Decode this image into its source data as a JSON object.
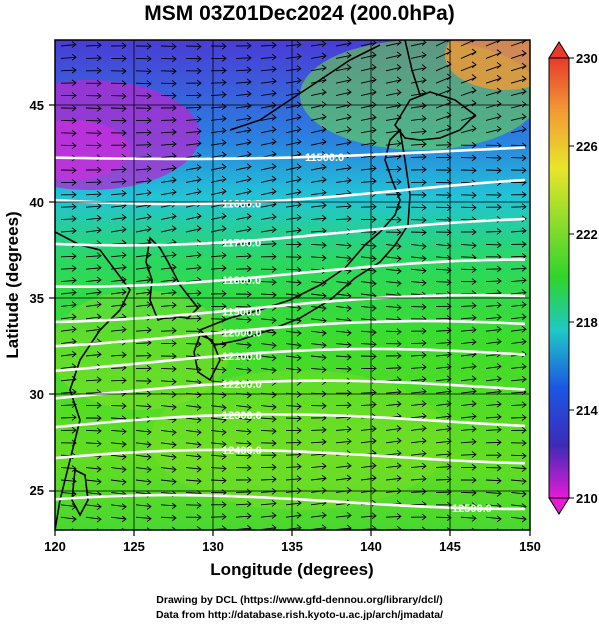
{
  "title": "MSM 03Z01Dec2024 (200.0hPa)",
  "axes": {
    "xlabel": "Longitude (degrees)",
    "ylabel": "Latitude  (degrees)",
    "x_ticks": [
      "120",
      "125",
      "130",
      "135",
      "140",
      "145",
      "150"
    ],
    "y_ticks": [
      "25",
      "30",
      "35",
      "40",
      "45"
    ]
  },
  "colorbar": {
    "ticks": [
      "230",
      "226",
      "222",
      "218",
      "214",
      "210"
    ]
  },
  "contours": [
    {
      "label": "11500.0",
      "lat": 41.9
    },
    {
      "label": "11600.0",
      "lat": 39.9
    },
    {
      "label": "11700.0",
      "lat": 37.8
    },
    {
      "label": "11800.0",
      "lat": 35.7
    },
    {
      "label": "11900.0",
      "lat": 33.9
    },
    {
      "label": "12000.0",
      "lat": 32.6
    },
    {
      "label": "12100.0",
      "lat": 31.2
    },
    {
      "label": "12200.0",
      "lat": 29.6
    },
    {
      "label": "12300.0",
      "lat": 27.9
    },
    {
      "label": "12400.0",
      "lat": 26.1
    },
    {
      "label": "12500.0",
      "lat": 23.8
    }
  ],
  "credits": {
    "line1": "Drawing by DCL (https://www.gfd-dennou.org/library/dcl/)",
    "line2": "Data from http://database.rish.kyoto-u.ac.jp/arch/jmadata/"
  }
}
